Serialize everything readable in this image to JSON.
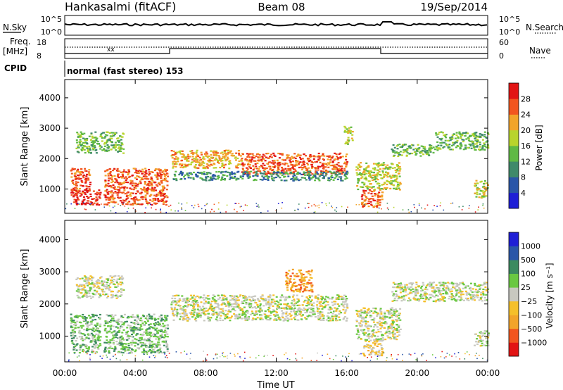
{
  "header": {
    "station": "Hankasalmi (fitACF)",
    "beam": "Beam 08",
    "date": "19/Sep/2014"
  },
  "top_panels": {
    "nsky_label": "N.Sky",
    "nsky_ticks": [
      "10^5",
      "10^0"
    ],
    "nsearch_label": "N.Search",
    "nsearch_ticks": [
      "10^5",
      "10^0"
    ],
    "freq_label": "Freq.",
    "freq_unit": "[MHz]",
    "freq_ticks": [
      "18",
      "8"
    ],
    "nave_label": "Nave",
    "nave_ticks": [
      "60",
      "0"
    ],
    "cpid_label": "CPID",
    "cpid_text": "normal (fast stereo) 153"
  },
  "chart_data": [
    {
      "type": "heatmap",
      "panel": "power",
      "ylabel": "Slant Range [km]",
      "yticks": [
        "4000",
        "3000",
        "2000",
        "1000"
      ],
      "ylim": [
        200,
        4600
      ],
      "xlim": [
        0,
        24
      ],
      "colorbar_label": "Power [dB]",
      "colorbar_ticks": [
        "28",
        "24",
        "20",
        "16",
        "12",
        "8",
        "4"
      ],
      "colors": [
        "#1f1fd6",
        "#2a56a8",
        "#3f8a6a",
        "#5fb944",
        "#b8d42c",
        "#f2a42a",
        "#f2561f",
        "#e21414"
      ],
      "bands": [
        {
          "t0": 0.6,
          "t1": 3.3,
          "r0": 2200,
          "r1": 2900,
          "level": 3
        },
        {
          "t0": 0.3,
          "t1": 1.4,
          "r0": 900,
          "r1": 1700,
          "level": 6
        },
        {
          "t0": 0.3,
          "t1": 2.0,
          "r0": 500,
          "r1": 1000,
          "level": 7
        },
        {
          "t0": 2.2,
          "t1": 5.8,
          "r0": 500,
          "r1": 1700,
          "level": 6
        },
        {
          "t0": 6.0,
          "t1": 10.0,
          "r0": 1700,
          "r1": 2300,
          "level": 5
        },
        {
          "t0": 10.0,
          "t1": 16.0,
          "r0": 1500,
          "r1": 2200,
          "level": 6
        },
        {
          "t0": 6.1,
          "t1": 16.0,
          "r0": 1300,
          "r1": 1600,
          "level": 2
        },
        {
          "t0": 15.8,
          "t1": 16.3,
          "r0": 2500,
          "r1": 3100,
          "level": 4
        },
        {
          "t0": 16.8,
          "t1": 18.0,
          "r0": 400,
          "r1": 1000,
          "level": 6
        },
        {
          "t0": 16.5,
          "t1": 19.0,
          "r0": 1000,
          "r1": 1900,
          "level": 4
        },
        {
          "t0": 18.5,
          "t1": 21.0,
          "r0": 2100,
          "r1": 2500,
          "level": 3
        },
        {
          "t0": 21.0,
          "t1": 24.0,
          "r0": 2300,
          "r1": 2900,
          "level": 3
        },
        {
          "t0": 23.2,
          "t1": 24.0,
          "r0": 700,
          "r1": 1300,
          "level": 4
        }
      ]
    },
    {
      "type": "heatmap",
      "panel": "velocity",
      "ylabel": "Slant Range [km]",
      "yticks": [
        "4000",
        "3000",
        "2000",
        "1000"
      ],
      "ylim": [
        200,
        4600
      ],
      "xlim": [
        0,
        24
      ],
      "xticks": [
        "00:00",
        "04:00",
        "08:00",
        "12:00",
        "16:00",
        "20:00",
        "00:00"
      ],
      "xlabel": "Time UT",
      "colorbar_label": "Velocity [m s⁻¹]",
      "colorbar_ticks": [
        "1000",
        "500",
        "100",
        "25",
        "−25",
        "−100",
        "−500",
        "−1000"
      ],
      "colors": [
        "#e21414",
        "#f2561f",
        "#f2a42a",
        "#f5c02a",
        "#c8c8c0",
        "#6ac842",
        "#3c8a60",
        "#2a56a8",
        "#1f1fd6"
      ],
      "bands": [
        {
          "t0": 0.6,
          "t1": 3.3,
          "r0": 2200,
          "r1": 2900,
          "level": 4
        },
        {
          "t0": 0.3,
          "t1": 2.0,
          "r0": 500,
          "r1": 1700,
          "level": 5
        },
        {
          "t0": 2.2,
          "t1": 5.8,
          "r0": 500,
          "r1": 1700,
          "level": 5
        },
        {
          "t0": 6.0,
          "t1": 16.0,
          "r0": 1500,
          "r1": 2300,
          "level": 4
        },
        {
          "t0": 12.5,
          "t1": 14.0,
          "r0": 2400,
          "r1": 3100,
          "level": 2
        },
        {
          "t0": 16.8,
          "t1": 18.0,
          "r0": 400,
          "r1": 900,
          "level": 3
        },
        {
          "t0": 16.5,
          "t1": 19.0,
          "r0": 900,
          "r1": 1900,
          "level": 4
        },
        {
          "t0": 18.5,
          "t1": 24.0,
          "r0": 2100,
          "r1": 2700,
          "level": 4
        },
        {
          "t0": 23.2,
          "t1": 24.0,
          "r0": 700,
          "r1": 1200,
          "level": 4
        }
      ]
    }
  ]
}
